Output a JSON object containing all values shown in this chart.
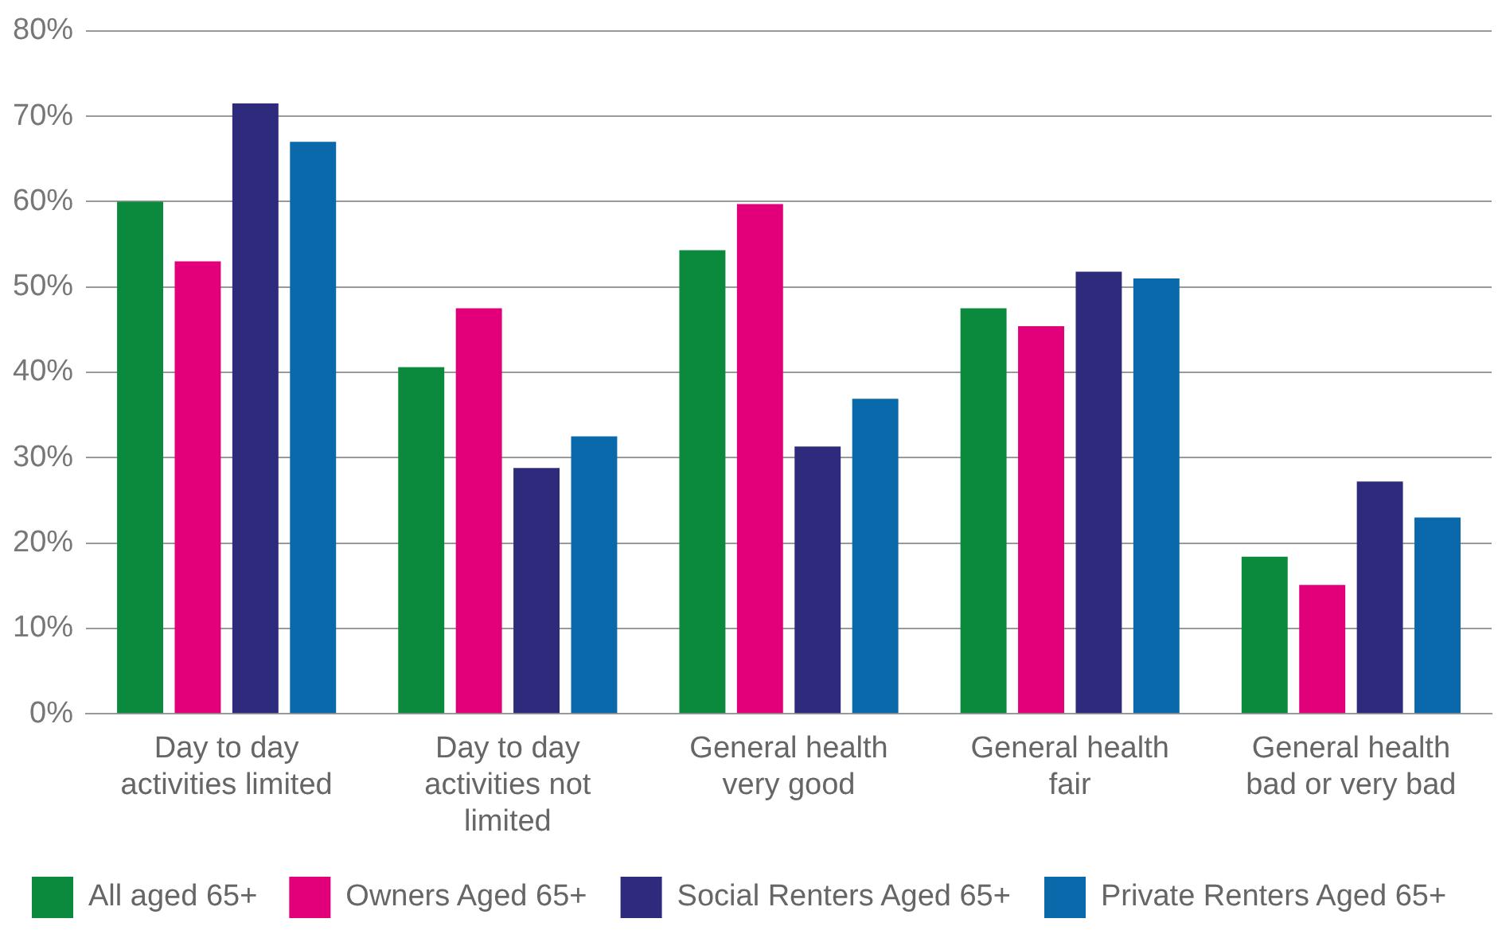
{
  "chart_data": {
    "type": "bar",
    "categories": [
      "Day to day activities limited",
      "Day to day activities not limited",
      "General health very good",
      "General health fair",
      "General health bad or very bad"
    ],
    "series": [
      {
        "name": "All aged 65+",
        "color": "#0b8a3e",
        "values": [
          60,
          40.6,
          54.3,
          47.5,
          18.4
        ]
      },
      {
        "name": "Owners Aged 65+",
        "color": "#e2007a",
        "values": [
          53,
          47.5,
          59.7,
          45.4,
          15.1
        ]
      },
      {
        "name": "Social Renters Aged 65+",
        "color": "#2e2b7c",
        "values": [
          71.5,
          28.8,
          31.3,
          51.8,
          27.2
        ]
      },
      {
        "name": "Private Renters Aged 65+",
        "color": "#0a69aa",
        "values": [
          67,
          32.5,
          36.9,
          51,
          23
        ]
      }
    ],
    "ylim": [
      0,
      80
    ],
    "yticks": [
      {
        "value": 0,
        "label": "0%"
      },
      {
        "value": 10,
        "label": "10%"
      },
      {
        "value": 20,
        "label": "20%"
      },
      {
        "value": 30,
        "label": "30%"
      },
      {
        "value": 40,
        "label": "40%"
      },
      {
        "value": 50,
        "label": "50%"
      },
      {
        "value": 60,
        "label": "60%"
      },
      {
        "value": 70,
        "label": "70%"
      },
      {
        "value": 80,
        "label": "80%"
      }
    ],
    "grid": "y",
    "legend": "bottom"
  }
}
